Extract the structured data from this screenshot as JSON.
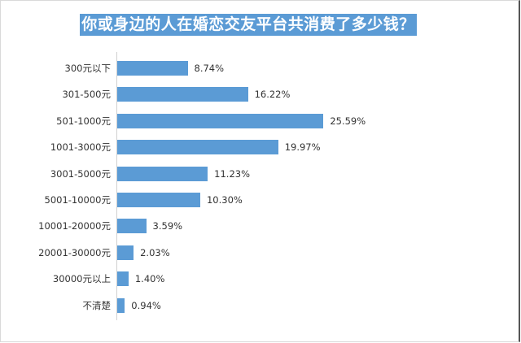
{
  "chart_data": {
    "type": "bar",
    "orientation": "horizontal",
    "title": "你或身边的人在婚恋交友平台共消费了多少钱？",
    "categories": [
      "300元以下",
      "301-500元",
      "501-1000元",
      "1001-3000元",
      "3001-5000元",
      "5001-10000元",
      "10001-20000元",
      "20001-30000元",
      "30000元以上",
      "不清楚"
    ],
    "values": [
      8.74,
      16.22,
      25.59,
      19.97,
      11.23,
      10.3,
      3.59,
      2.03,
      1.4,
      0.94
    ],
    "labels": [
      "8.74%",
      "16.22%",
      "25.59%",
      "19.97%",
      "11.23%",
      "10.30%",
      "3.59%",
      "2.03%",
      "1.40%",
      "0.94%"
    ],
    "xlabel": "",
    "ylabel": "",
    "unit": "%",
    "grid": false,
    "legend": "none",
    "bar_color": "#5b9bd5"
  },
  "title": "你或身边的人在婚恋交友平台共消费了多少钱？",
  "colors": {
    "accent": "#5b9bd5",
    "text": "#333333",
    "axis": "#d0d0d0"
  }
}
